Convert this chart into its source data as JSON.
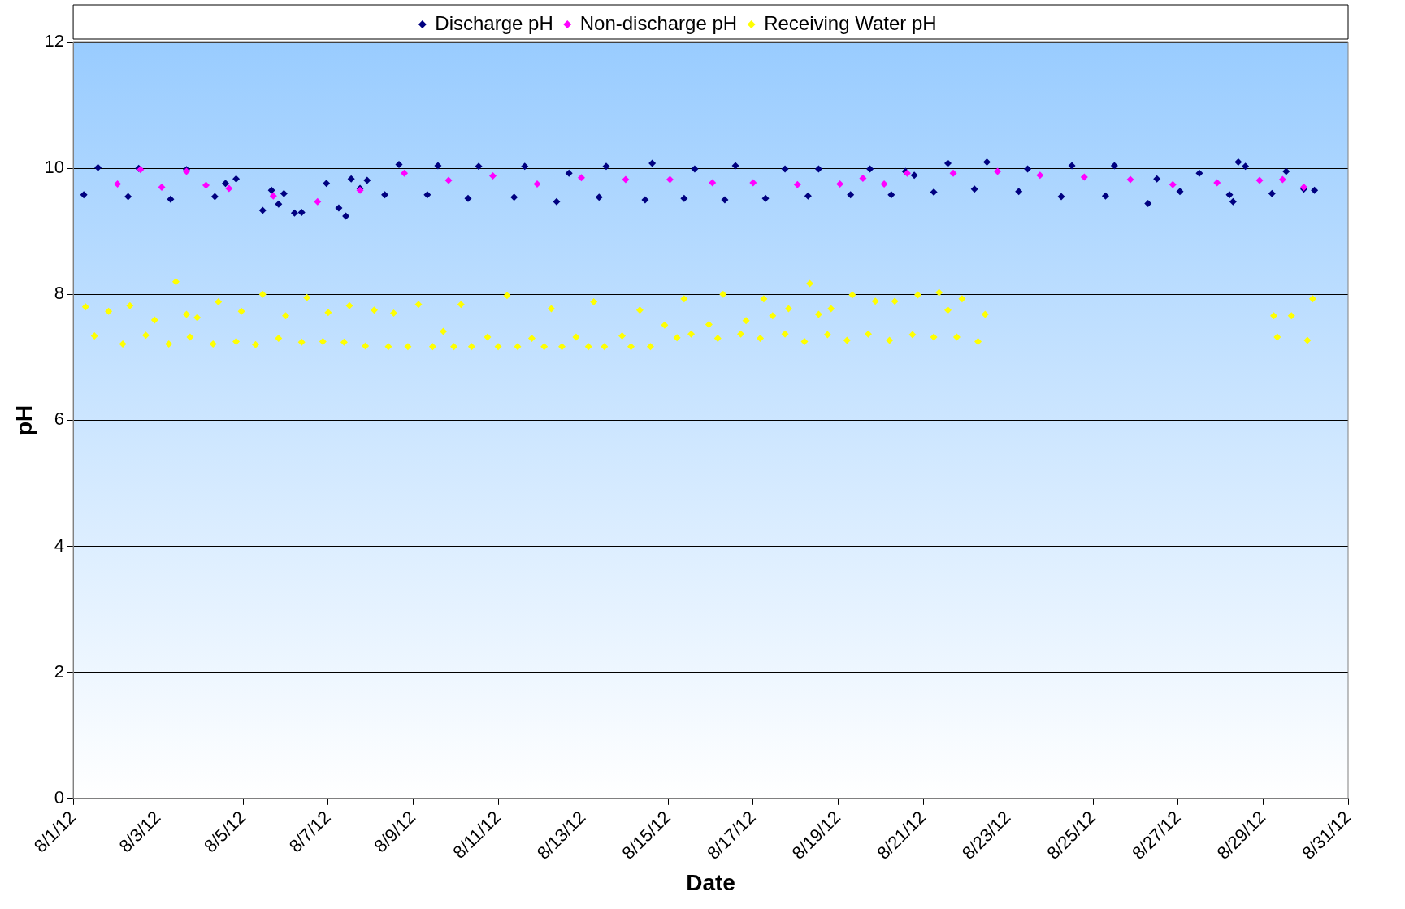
{
  "chart_data": {
    "type": "scatter",
    "xlabel": "Date",
    "ylabel": "pH",
    "xlim": [
      "--08-01",
      "--08-31"
    ],
    "xticks": [
      {
        "value": "--08-01",
        "label": "8/1/12"
      },
      {
        "value": "--08-03",
        "label": "8/3/12"
      },
      {
        "value": "--08-05",
        "label": "8/5/12"
      },
      {
        "value": "--08-07",
        "label": "8/7/12"
      },
      {
        "value": "--08-09",
        "label": "8/9/12"
      },
      {
        "value": "--08-11",
        "label": "8/11/12"
      },
      {
        "value": "--08-13",
        "label": "8/13/12"
      },
      {
        "value": "--08-15",
        "label": "8/15/12"
      },
      {
        "value": "--08-17",
        "label": "8/17/12"
      },
      {
        "value": "--08-19",
        "label": "8/19/12"
      },
      {
        "value": "--08-21",
        "label": "8/21/12"
      },
      {
        "value": "--08-23",
        "label": "8/23/12"
      },
      {
        "value": "--08-25",
        "label": "8/25/12"
      },
      {
        "value": "--08-27",
        "label": "8/27/12"
      },
      {
        "value": "--08-29",
        "label": "8/29/12"
      },
      {
        "value": "--08-31",
        "label": "8/31/12"
      }
    ],
    "ylim": [
      0,
      12
    ],
    "yticks": [
      0,
      2,
      4,
      6,
      8,
      10,
      12
    ],
    "grid": "y",
    "legend": "top",
    "marker": "diamond",
    "series": [
      {
        "name": "Discharge pH",
        "color": "#000080",
        "x": [
          "--08-01T06:00",
          "--08-01T14:00",
          "--08-02T07:00",
          "--08-02T13:00",
          "--08-03T07:00",
          "--08-03T16:00",
          "--08-04T08:00",
          "--08-04T14:00",
          "--08-04T20:00",
          "--08-05T11:00",
          "--08-05T16:00",
          "--08-05T20:00",
          "--08-05T23:00",
          "--08-06T05:00",
          "--08-06T09:00",
          "--08-06T23:00",
          "--08-07T06:00",
          "--08-07T10:00",
          "--08-07T13:00",
          "--08-07T18:00",
          "--08-07T22:00",
          "--08-08T08:00",
          "--08-08T16:00",
          "--08-09T08:00",
          "--08-09T14:00",
          "--08-10T07:00",
          "--08-10T13:00",
          "--08-11T09:00",
          "--08-11T15:00",
          "--08-12T09:00",
          "--08-12T16:00",
          "--08-13T09:00",
          "--08-13T13:00",
          "--08-14T11:00",
          "--08-14T15:00",
          "--08-15T09:00",
          "--08-15T15:00",
          "--08-16T08:00",
          "--08-16T14:00",
          "--08-17T07:00",
          "--08-17T18:00",
          "--08-18T07:00",
          "--08-18T13:00",
          "--08-19T07:00",
          "--08-19T18:00",
          "--08-20T06:00",
          "--08-20T14:00",
          "--08-20T19:00",
          "--08-21T06:00",
          "--08-21T14:00",
          "--08-22T05:00",
          "--08-22T12:00",
          "--08-23T06:00",
          "--08-23T11:00",
          "--08-24T06:00",
          "--08-24T12:00",
          "--08-25T07:00",
          "--08-25T12:00",
          "--08-26T07:00",
          "--08-26T12:00",
          "--08-27T01:00",
          "--08-27T12:00",
          "--08-28T05:00",
          "--08-28T07:00",
          "--08-28T10:00",
          "--08-28T14:00",
          "--08-29T05:00",
          "--08-29T13:00",
          "--08-29T23:00",
          "--08-30T05:00"
        ],
        "values": [
          9.58,
          10.01,
          9.55,
          10.0,
          9.51,
          9.98,
          9.55,
          9.76,
          9.83,
          9.33,
          9.65,
          9.43,
          9.6,
          9.29,
          9.3,
          9.76,
          9.37,
          9.24,
          9.83,
          9.68,
          9.81,
          9.58,
          10.06,
          9.58,
          10.04,
          9.52,
          10.03,
          9.54,
          10.03,
          9.47,
          9.92,
          9.54,
          10.03,
          9.5,
          10.08,
          9.52,
          9.99,
          9.5,
          10.04,
          9.52,
          9.99,
          9.56,
          9.99,
          9.58,
          9.99,
          9.58,
          9.95,
          9.89,
          9.62,
          10.08,
          9.67,
          10.1,
          9.63,
          9.99,
          9.55,
          10.04,
          9.56,
          10.04,
          9.44,
          9.83,
          9.63,
          9.92,
          9.58,
          9.47,
          10.1,
          10.03,
          9.6,
          9.95,
          9.67,
          9.65
        ]
      },
      {
        "name": "Non-discharge pH",
        "color": "#ff00ff",
        "x": [
          "--08-02T01:00",
          "--08-02T14:00",
          "--08-03T02:00",
          "--08-03T16:00",
          "--08-04T03:00",
          "--08-04T16:00",
          "--08-05T17:00",
          "--08-06T18:00",
          "--08-07T18:00",
          "--08-08T19:00",
          "--08-09T20:00",
          "--08-10T21:00",
          "--08-11T22:00",
          "--08-12T23:00",
          "--08-14T00:00",
          "--08-15T01:00",
          "--08-16T01:00",
          "--08-17T00:00",
          "--08-18T01:00",
          "--08-19T01:00",
          "--08-19T14:00",
          "--08-20T02:00",
          "--08-20T15:00",
          "--08-21T17:00",
          "--08-22T18:00",
          "--08-23T18:00",
          "--08-24T19:00",
          "--08-25T21:00",
          "--08-26T21:00",
          "--08-27T22:00",
          "--08-28T22:00",
          "--08-29T11:00",
          "--08-29T23:00"
        ],
        "values": [
          9.75,
          9.98,
          9.7,
          9.95,
          9.73,
          9.68,
          9.56,
          9.47,
          9.65,
          9.92,
          9.81,
          9.88,
          9.75,
          9.85,
          9.82,
          9.82,
          9.77,
          9.77,
          9.74,
          9.75,
          9.84,
          9.75,
          9.92,
          9.92,
          9.95,
          9.89,
          9.86,
          9.82,
          9.74,
          9.77,
          9.81,
          9.82,
          9.7
        ]
      },
      {
        "name": "Receiving Water pH",
        "color": "#ffff00",
        "x": [
          "--08-01T07:00",
          "--08-01T12:00",
          "--08-01T20:00",
          "--08-02T04:00",
          "--08-02T08:00",
          "--08-02T17:00",
          "--08-02T22:00",
          "--08-03T06:00",
          "--08-03T10:00",
          "--08-03T16:00",
          "--08-03T18:00",
          "--08-03T22:00",
          "--08-04T07:00",
          "--08-04T10:00",
          "--08-04T20:00",
          "--08-04T23:00",
          "--08-05T07:00",
          "--08-05T11:00",
          "--08-05T20:00",
          "--08-06T00:00",
          "--08-06T09:00",
          "--08-06T12:00",
          "--08-06T21:00",
          "--08-07T00:00",
          "--08-07T09:00",
          "--08-07T12:00",
          "--08-07T21:00",
          "--08-08T02:00",
          "--08-08T10:00",
          "--08-08T13:00",
          "--08-08T21:00",
          "--08-09T03:00",
          "--08-09T11:00",
          "--08-09T17:00",
          "--08-09T23:00",
          "--08-10T03:00",
          "--08-10T09:00",
          "--08-10T18:00",
          "--08-11T00:00",
          "--08-11T05:00",
          "--08-11T11:00",
          "--08-11T19:00",
          "--08-12T02:00",
          "--08-12T06:00",
          "--08-12T12:00",
          "--08-12T20:00",
          "--08-13T03:00",
          "--08-13T06:00",
          "--08-13T12:00",
          "--08-13T22:00",
          "--08-14T03:00",
          "--08-14T08:00",
          "--08-14T14:00",
          "--08-14T22:00",
          "--08-15T05:00",
          "--08-15T09:00",
          "--08-15T13:00",
          "--08-15T23:00",
          "--08-16T04:00",
          "--08-16T07:00",
          "--08-16T17:00",
          "--08-16T20:00",
          "--08-17T04:00",
          "--08-17T06:00",
          "--08-17T11:00",
          "--08-17T18:00",
          "--08-17T20:00",
          "--08-18T05:00",
          "--08-18T08:00",
          "--08-18T13:00",
          "--08-18T18:00",
          "--08-18T20:00",
          "--08-19T05:00",
          "--08-19T08:00",
          "--08-19T17:00",
          "--08-19T21:00",
          "--08-20T05:00",
          "--08-20T08:00",
          "--08-20T18:00",
          "--08-20T21:00",
          "--08-21T06:00",
          "--08-21T09:00",
          "--08-21T14:00",
          "--08-21T19:00",
          "--08-21T22:00",
          "--08-22T07:00",
          "--08-22T11:00",
          "--08-29T06:00",
          "--08-29T08:00",
          "--08-29T16:00",
          "--08-30T01:00",
          "--08-30T04:00"
        ],
        "values": [
          7.8,
          7.34,
          7.73,
          7.21,
          7.82,
          7.35,
          7.59,
          7.21,
          8.2,
          7.68,
          7.32,
          7.63,
          7.21,
          7.88,
          7.25,
          7.73,
          7.2,
          8.0,
          7.3,
          7.66,
          7.24,
          7.95,
          7.25,
          7.71,
          7.24,
          7.82,
          7.18,
          7.75,
          7.17,
          7.7,
          7.17,
          7.84,
          7.17,
          7.41,
          7.17,
          7.84,
          7.17,
          7.32,
          7.17,
          7.98,
          7.17,
          7.3,
          7.17,
          7.77,
          7.17,
          7.32,
          7.17,
          7.88,
          7.17,
          7.34,
          7.17,
          7.75,
          7.17,
          7.51,
          7.31,
          7.93,
          7.37,
          7.52,
          7.3,
          8.0,
          7.37,
          7.58,
          7.3,
          7.93,
          7.66,
          7.37,
          7.77,
          7.25,
          8.17,
          7.68,
          7.36,
          7.77,
          7.27,
          7.99,
          7.37,
          7.89,
          7.27,
          7.89,
          7.36,
          7.99,
          7.32,
          8.03,
          7.75,
          7.32,
          7.93,
          7.25,
          7.68,
          7.66,
          7.32,
          7.66,
          7.27,
          7.93
        ]
      }
    ]
  }
}
